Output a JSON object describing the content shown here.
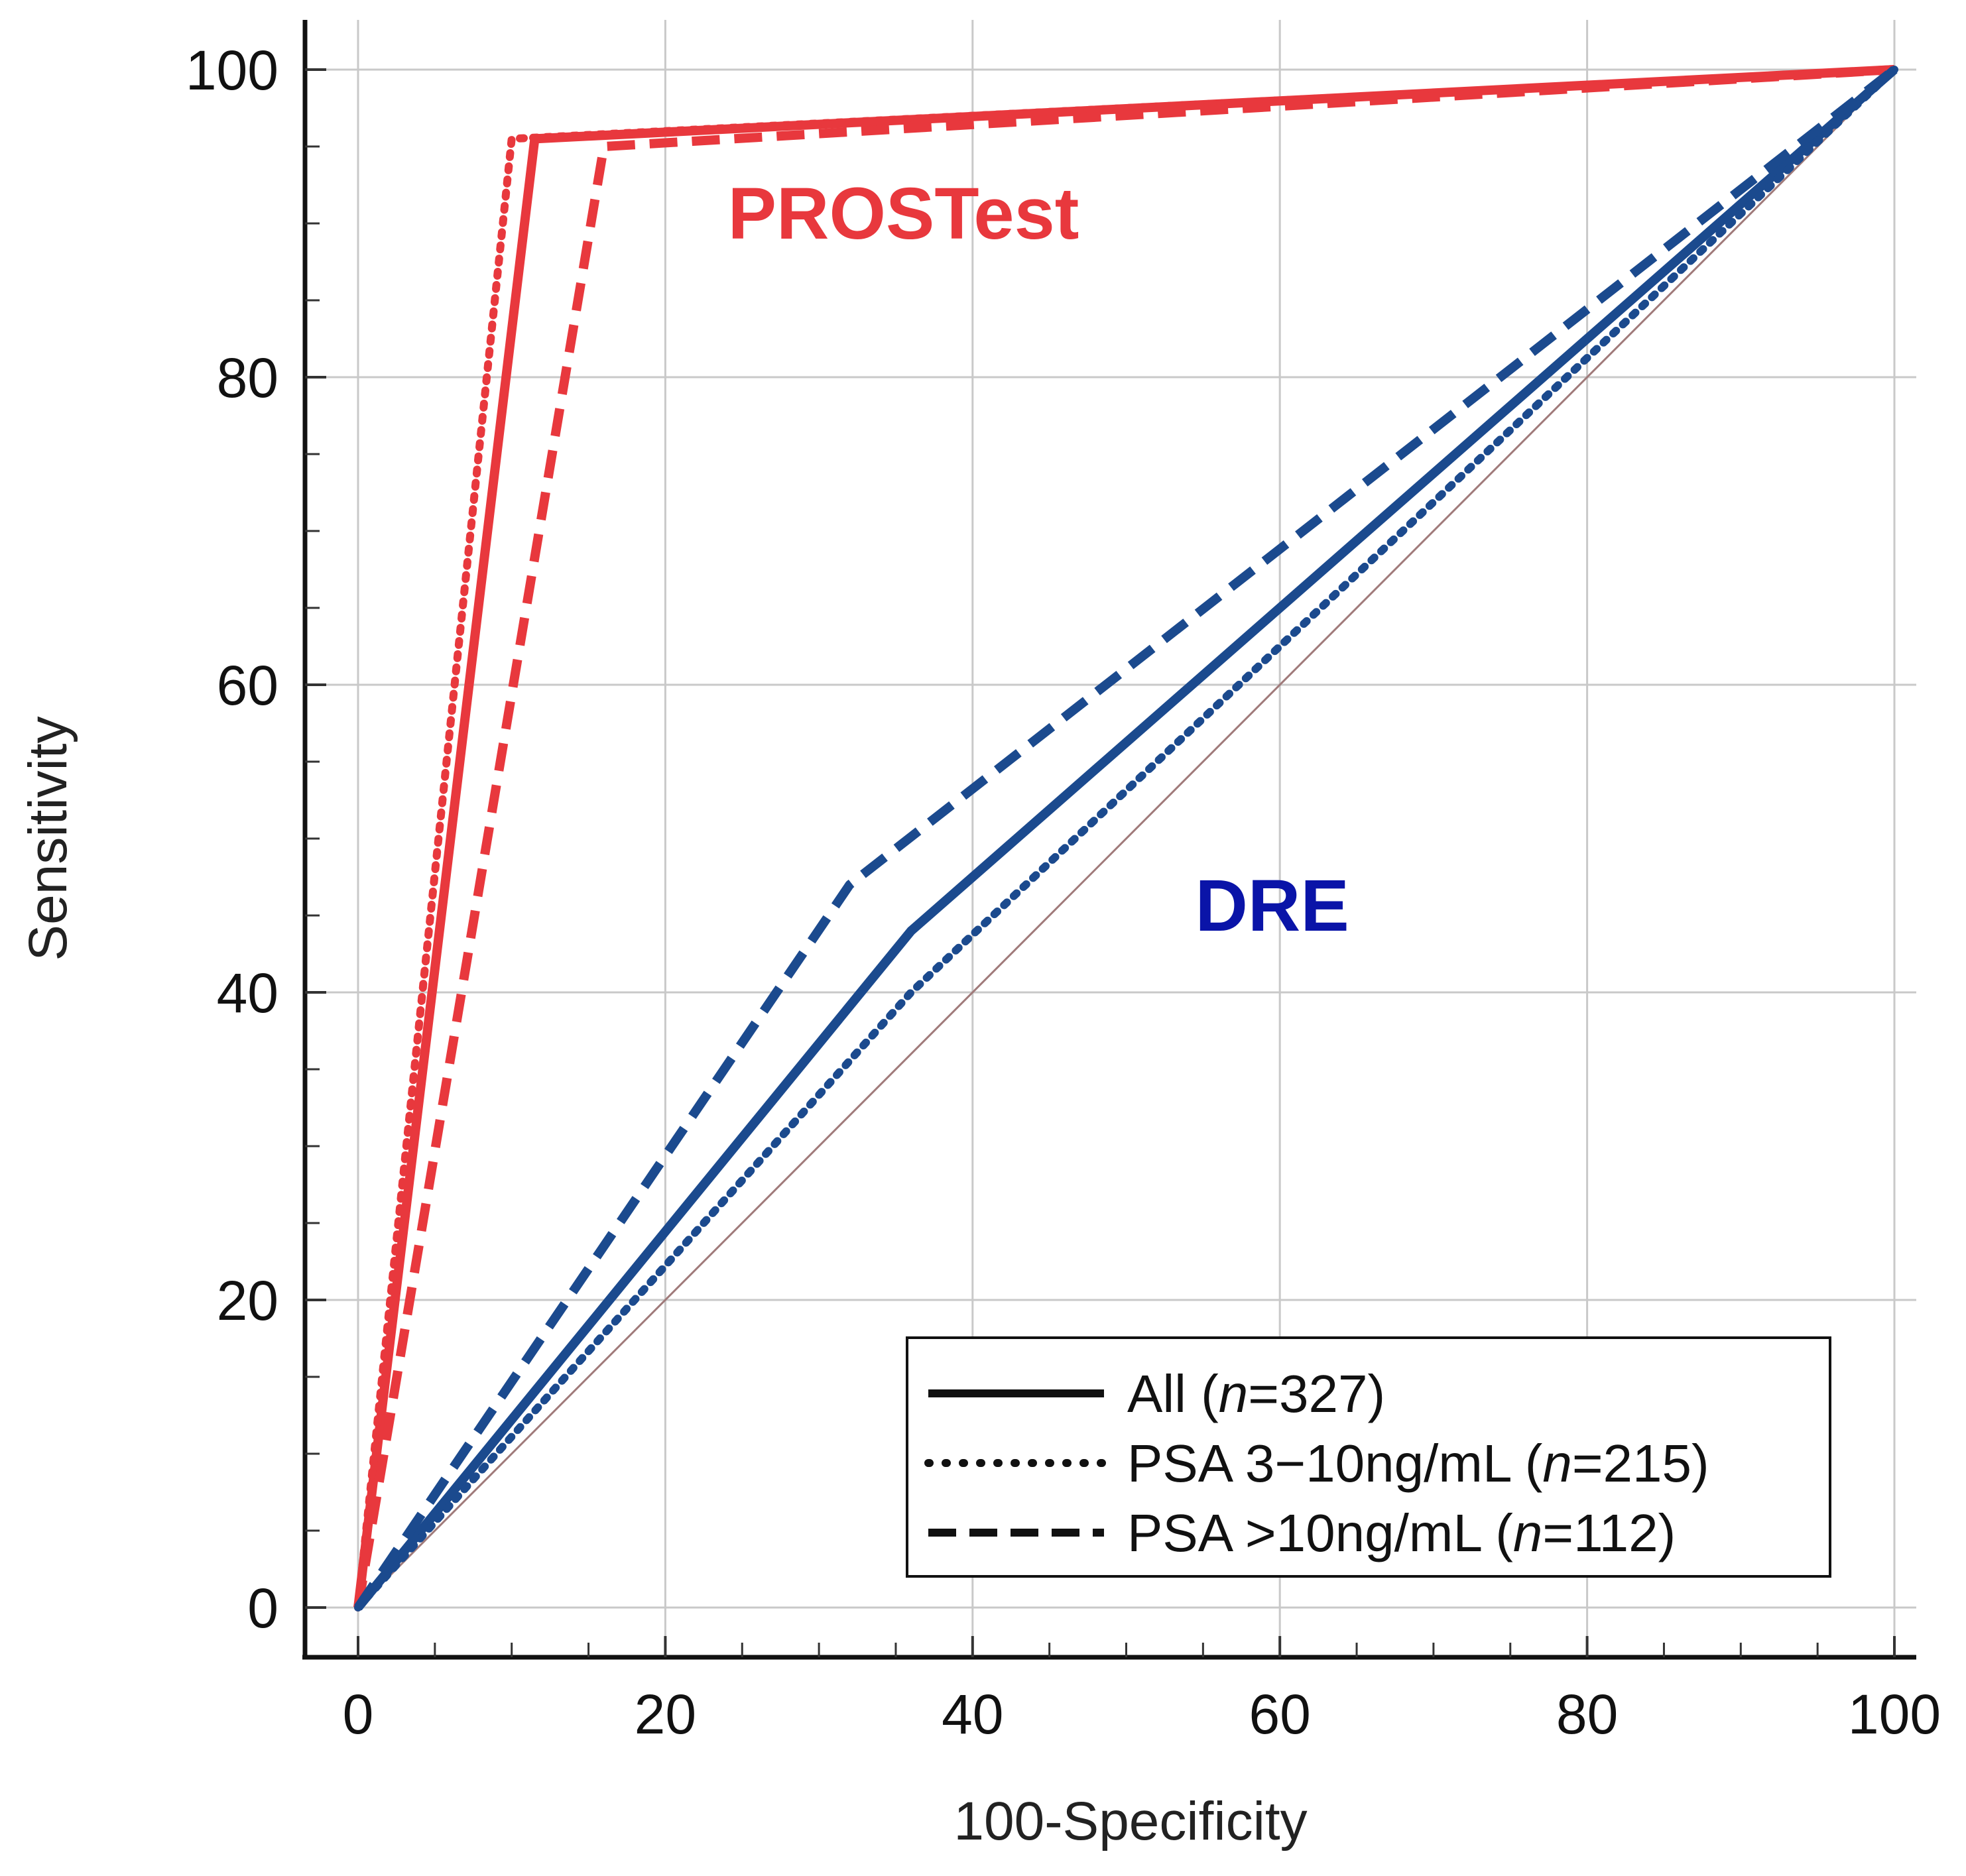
{
  "chart_data": {
    "type": "line",
    "title": "",
    "xlabel": "100-Specificity",
    "ylabel": "Sensitivity",
    "xlim": [
      0,
      100
    ],
    "ylim": [
      0,
      100
    ],
    "grid": true,
    "x_ticks": [
      0,
      20,
      40,
      60,
      80,
      100
    ],
    "y_ticks": [
      0,
      20,
      40,
      60,
      80,
      100
    ],
    "x_tick_labels": [
      "0",
      "20",
      "40",
      "60",
      "80",
      "100"
    ],
    "y_tick_labels": [
      "0",
      "20",
      "40",
      "60",
      "80",
      "100"
    ],
    "annotations": [
      {
        "text": "PROSTest",
        "color": "#e8383d",
        "x": 35.5,
        "y": 89
      },
      {
        "text": "DRE",
        "color": "#0a14a8",
        "x": 59.5,
        "y": 44
      }
    ],
    "legend": {
      "position": "bottom-right",
      "entries": [
        {
          "style": "solid",
          "label": "All (",
          "italic": "n",
          "label_end": "=327)"
        },
        {
          "style": "dotted",
          "label": "PSA 3−10ng/mL (",
          "italic": "n",
          "label_end": "=215)"
        },
        {
          "style": "dashed",
          "label": "PSA >10ng/mL (",
          "italic": "n",
          "label_end": "=112)"
        }
      ]
    },
    "reference_line": {
      "x": [
        0,
        100
      ],
      "y": [
        0,
        100
      ],
      "color": "#a07a7a"
    },
    "series": [
      {
        "name": "PROSTest All (n=327)",
        "group": "PROSTest",
        "style": "solid",
        "color": "#e8383d",
        "x": [
          0,
          11.5,
          100
        ],
        "y": [
          0,
          95.5,
          100
        ]
      },
      {
        "name": "PROSTest PSA 3-10ng/mL (n=215)",
        "group": "PROSTest",
        "style": "dotted",
        "color": "#e8383d",
        "x": [
          0,
          10,
          100
        ],
        "y": [
          0,
          95.5,
          100
        ]
      },
      {
        "name": "PROSTest PSA >10ng/mL (n=112)",
        "group": "PROSTest",
        "style": "dashed",
        "color": "#e8383d",
        "x": [
          0,
          16,
          100
        ],
        "y": [
          0,
          95,
          100
        ]
      },
      {
        "name": "DRE All (n=327)",
        "group": "DRE",
        "style": "solid",
        "color": "#1b4a8e",
        "x": [
          0,
          36,
          100
        ],
        "y": [
          0,
          44,
          100
        ]
      },
      {
        "name": "DRE PSA 3-10ng/mL (n=215)",
        "group": "DRE",
        "style": "dotted",
        "color": "#1b4a8e",
        "x": [
          0,
          36,
          100
        ],
        "y": [
          0,
          40,
          100
        ]
      },
      {
        "name": "DRE PSA >10ng/mL (n=112)",
        "group": "DRE",
        "style": "dashed",
        "color": "#1b4a8e",
        "x": [
          0,
          32,
          100
        ],
        "y": [
          0,
          47,
          100
        ]
      }
    ]
  }
}
